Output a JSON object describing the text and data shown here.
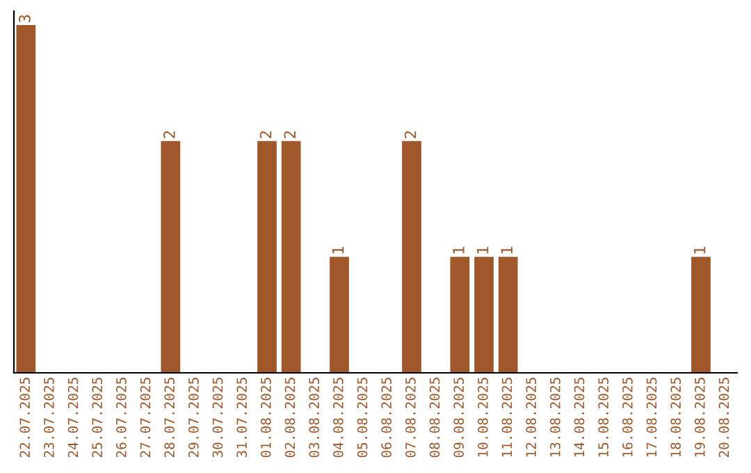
{
  "chart_data": {
    "type": "bar",
    "categories": [
      "22.07.2025",
      "23.07.2025",
      "24.07.2025",
      "25.07.2025",
      "26.07.2025",
      "27.07.2025",
      "28.07.2025",
      "29.07.2025",
      "30.07.2025",
      "31.07.2025",
      "01.08.2025",
      "02.08.2025",
      "03.08.2025",
      "04.08.2025",
      "05.08.2025",
      "06.08.2025",
      "07.08.2025",
      "08.08.2025",
      "09.08.2025",
      "10.08.2025",
      "11.08.2025",
      "12.08.2025",
      "13.08.2025",
      "14.08.2025",
      "15.08.2025",
      "16.08.2025",
      "17.08.2025",
      "18.08.2025",
      "19.08.2025",
      "20.08.2025"
    ],
    "values": [
      3,
      0,
      0,
      0,
      0,
      0,
      2,
      0,
      0,
      0,
      2,
      2,
      0,
      1,
      0,
      0,
      2,
      0,
      1,
      1,
      1,
      0,
      0,
      0,
      0,
      0,
      0,
      0,
      1,
      0
    ],
    "value_labels": [
      "3",
      null,
      null,
      null,
      null,
      null,
      "2",
      null,
      null,
      null,
      "2",
      "2",
      null,
      "1",
      null,
      null,
      "2",
      null,
      "1",
      "1",
      "1",
      null,
      null,
      null,
      null,
      null,
      null,
      null,
      "1",
      null
    ],
    "color": "#a0582a",
    "tick_labels": "x",
    "grid": false,
    "legend": false
  }
}
